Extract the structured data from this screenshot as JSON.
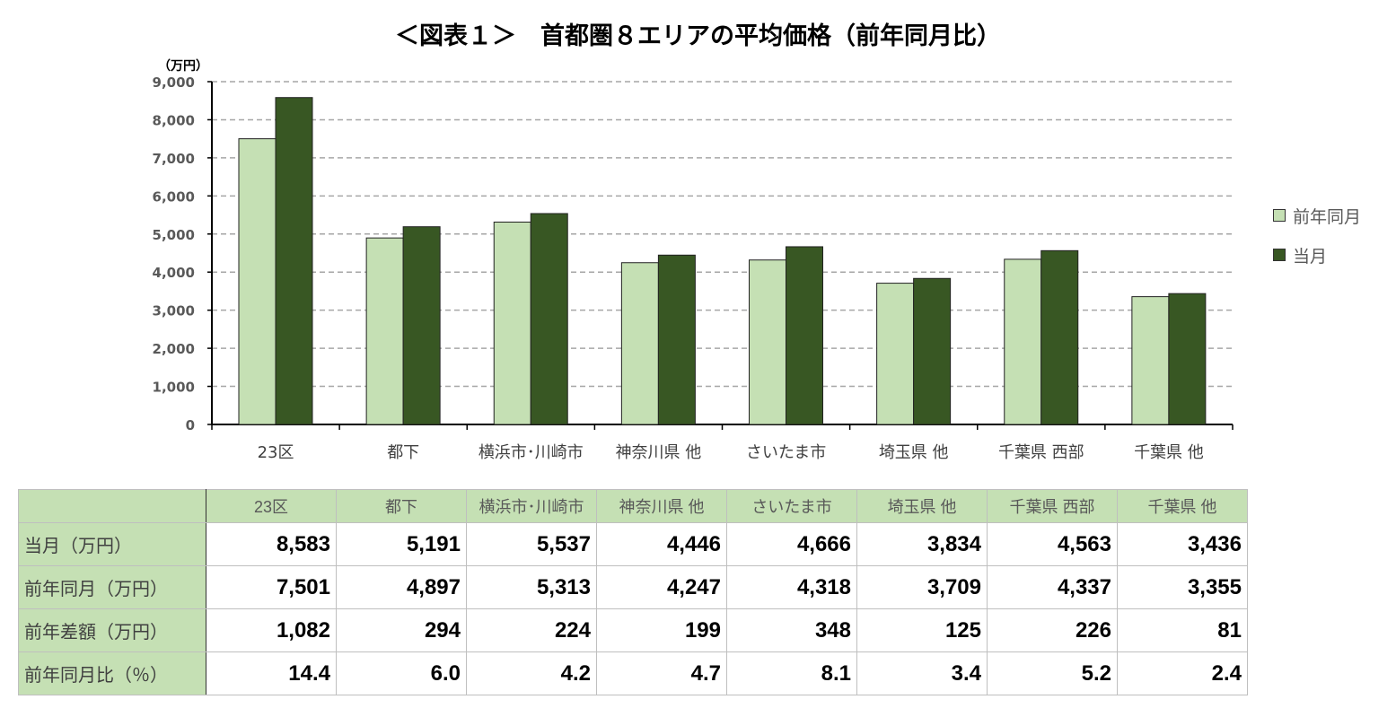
{
  "title": "＜図表１＞　首都圏８エリアの平均価格（前年同月比）",
  "chart_data": {
    "type": "bar",
    "title": "＜図表１＞　首都圏８エリアの平均価格（前年同月比）",
    "ylabel": "（万円）",
    "ylim": [
      0,
      9000
    ],
    "yticks": [
      "0",
      "1,000",
      "2,000",
      "3,000",
      "4,000",
      "5,000",
      "6,000",
      "7,000",
      "8,000",
      "9,000"
    ],
    "grid": true,
    "legend": "right",
    "categories": [
      "23区",
      "都下",
      "横浜市･川崎市",
      "神奈川県 他",
      "さいたま市",
      "埼玉県 他",
      "千葉県 西部",
      "千葉県 他"
    ],
    "series": [
      {
        "name": "前年同月",
        "color": "#c5e0b4",
        "values": [
          7501,
          4897,
          5313,
          4247,
          4318,
          3709,
          4337,
          3355
        ]
      },
      {
        "name": "当月",
        "color": "#385723",
        "values": [
          8583,
          5191,
          5537,
          4446,
          4666,
          3834,
          4563,
          3436
        ]
      }
    ]
  },
  "table": {
    "headers": [
      "23区",
      "都下",
      "横浜市･川崎市",
      "神奈川県 他",
      "さいたま市",
      "埼玉県 他",
      "千葉県 西部",
      "千葉県 他"
    ],
    "rows": [
      {
        "label": "当月（万円）",
        "values": [
          "8,583",
          "5,191",
          "5,537",
          "4,446",
          "4,666",
          "3,834",
          "4,563",
          "3,436"
        ]
      },
      {
        "label": "前年同月（万円）",
        "values": [
          "7,501",
          "4,897",
          "5,313",
          "4,247",
          "4,318",
          "3,709",
          "4,337",
          "3,355"
        ]
      },
      {
        "label": "前年差額（万円）",
        "values": [
          "1,082",
          "294",
          "224",
          "199",
          "348",
          "125",
          "226",
          "81"
        ]
      },
      {
        "label": "前年同月比（％）",
        "values": [
          "14.4",
          "6.0",
          "4.2",
          "4.7",
          "8.1",
          "3.4",
          "5.2",
          "2.4"
        ]
      }
    ]
  }
}
